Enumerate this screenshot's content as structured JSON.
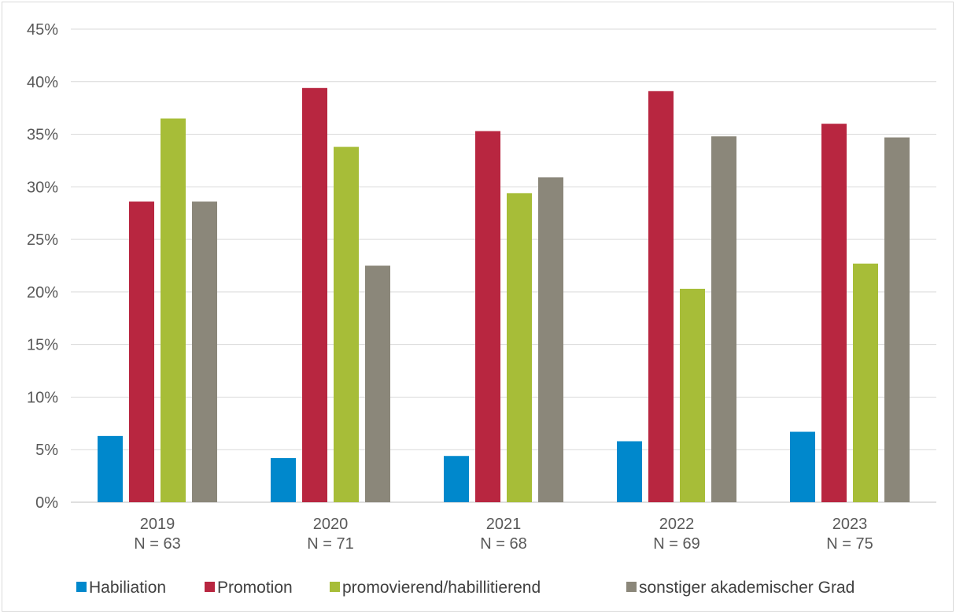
{
  "chart_data": {
    "type": "bar",
    "title": "",
    "xlabel": "",
    "ylabel": "",
    "ylim": [
      0,
      0.45
    ],
    "y_ticks": [
      "0%",
      "5%",
      "10%",
      "15%",
      "20%",
      "25%",
      "30%",
      "35%",
      "40%",
      "45%"
    ],
    "grid": true,
    "legend_position": "bottom",
    "categories": [
      {
        "year": "2019",
        "n": "N = 63"
      },
      {
        "year": "2020",
        "n": "N = 71"
      },
      {
        "year": "2021",
        "n": "N = 68"
      },
      {
        "year": "2022",
        "n": "N = 69"
      },
      {
        "year": "2023",
        "n": "N = 75"
      }
    ],
    "series": [
      {
        "name": "Habiliation",
        "color": "#0088cc",
        "values": [
          0.063,
          0.042,
          0.044,
          0.058,
          0.067
        ]
      },
      {
        "name": "Promotion",
        "color": "#b82640",
        "values": [
          0.286,
          0.394,
          0.353,
          0.391,
          0.36
        ]
      },
      {
        "name": "promovierend/habillitierend",
        "color": "#a7bd38",
        "values": [
          0.365,
          0.338,
          0.294,
          0.203,
          0.227
        ]
      },
      {
        "name": "sonstiger akademischer Grad",
        "color": "#8b877a",
        "values": [
          0.286,
          0.225,
          0.309,
          0.348,
          0.347
        ]
      }
    ]
  }
}
